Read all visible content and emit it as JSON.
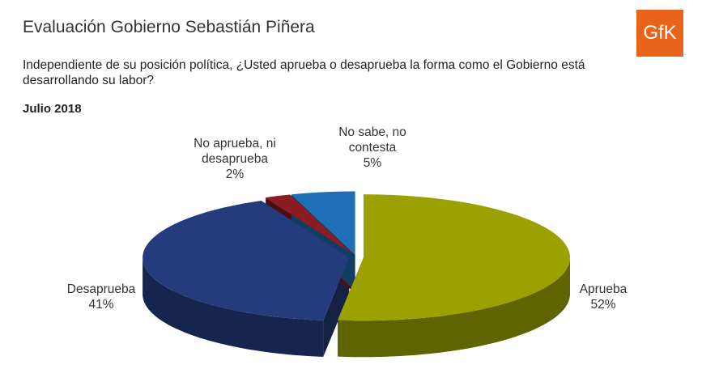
{
  "logo": "GfK",
  "chart_data": {
    "type": "pie",
    "title": "Evaluación Gobierno Sebastián Piñera",
    "subtitle": "Independiente de su posición política, ¿Usted aprueba o desaprueba la forma como el Gobierno está desarrollando su labor?",
    "period": "Julio 2018",
    "categories": [
      "Aprueba",
      "Desaprueba",
      "No aprueba, ni desaprueba",
      "No sabe, no contesta"
    ],
    "values": [
      52,
      41,
      2,
      5
    ],
    "value_labels": [
      "52%",
      "41%",
      "2%",
      "5%"
    ],
    "colors": [
      "#9aa100",
      "#243c7c",
      "#8c1c22",
      "#1f6fb6"
    ]
  }
}
